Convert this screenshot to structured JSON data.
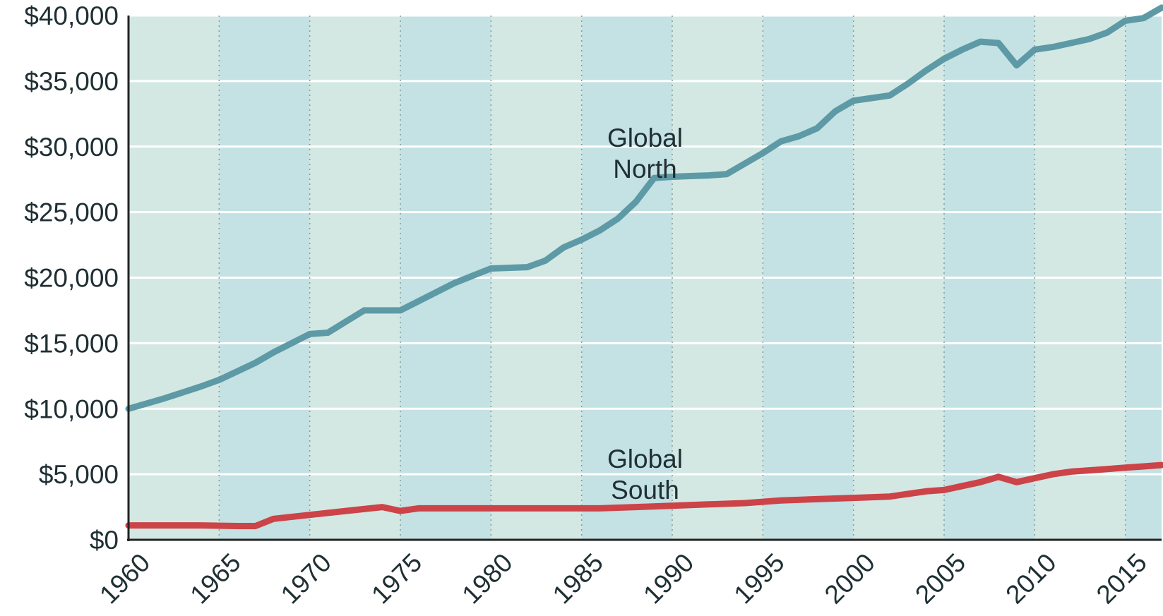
{
  "chart_data": {
    "type": "line",
    "title": "",
    "xlabel": "",
    "ylabel": "",
    "xlim": [
      1960,
      2017
    ],
    "ylim": [
      0,
      40000
    ],
    "y_ticks": [
      0,
      5000,
      10000,
      15000,
      20000,
      25000,
      30000,
      35000,
      40000
    ],
    "y_tick_labels": [
      "$0",
      "$5,000",
      "$10,000",
      "$15,000",
      "$20,000",
      "$25,000",
      "$30,000",
      "$35,000",
      "$40,000"
    ],
    "x_ticks": [
      1960,
      1965,
      1970,
      1975,
      1980,
      1985,
      1990,
      1995,
      2000,
      2005,
      2010,
      2015
    ],
    "x_tick_labels": [
      "1960",
      "1965",
      "1970",
      "1975",
      "1980",
      "1985",
      "1990",
      "1995",
      "2000",
      "2005",
      "2010",
      "2015"
    ],
    "grid": true,
    "legend": "none",
    "colors": {
      "band_light": "#d4e8e3",
      "band_dark": "#c4e1e3",
      "grid_h": "#ffffff",
      "grid_v": "#7f9e9a",
      "axis": "#222222"
    },
    "series": [
      {
        "name": "Global North",
        "label_lines": [
          "Global",
          "North"
        ],
        "label_anchor": [
          1988.5,
          30000
        ],
        "color": "#5d9aa6",
        "x": [
          1960,
          1962,
          1964,
          1965,
          1967,
          1968,
          1970,
          1971,
          1973,
          1975,
          1976,
          1977,
          1978,
          1980,
          1982,
          1983,
          1984,
          1985,
          1986,
          1987,
          1988,
          1989,
          1990,
          1991,
          1992,
          1993,
          1994,
          1995,
          1996,
          1997,
          1998,
          1999,
          2000,
          2001,
          2002,
          2003,
          2004,
          2005,
          2006,
          2007,
          2008,
          2009,
          2010,
          2011,
          2012,
          2013,
          2014,
          2015,
          2016,
          2017
        ],
        "y": [
          10000,
          10800,
          11700,
          12200,
          13500,
          14300,
          15700,
          15800,
          17500,
          17500,
          18200,
          18900,
          19600,
          20700,
          20800,
          21300,
          22300,
          22900,
          23600,
          24500,
          25800,
          27600,
          27700,
          27750,
          27800,
          27900,
          28700,
          29500,
          30400,
          30800,
          31400,
          32700,
          33500,
          33700,
          33900,
          34800,
          35800,
          36700,
          37400,
          38000,
          37900,
          36200,
          37400,
          37600,
          37900,
          38200,
          38700,
          39600,
          39800,
          40600
        ]
      },
      {
        "name": "Global South",
        "label_lines": [
          "Global",
          "South"
        ],
        "label_anchor": [
          1988.5,
          5500
        ],
        "color": "#cc4348",
        "x": [
          1960,
          1962,
          1964,
          1966,
          1967,
          1968,
          1970,
          1972,
          1974,
          1975,
          1976,
          1978,
          1980,
          1982,
          1984,
          1986,
          1988,
          1990,
          1992,
          1994,
          1996,
          1998,
          2000,
          2002,
          2003,
          2004,
          2005,
          2006,
          2007,
          2008,
          2009,
          2010,
          2011,
          2012,
          2013,
          2014,
          2015,
          2016,
          2017
        ],
        "y": [
          1100,
          1100,
          1100,
          1050,
          1050,
          1600,
          1900,
          2200,
          2500,
          2200,
          2400,
          2400,
          2400,
          2400,
          2400,
          2400,
          2500,
          2600,
          2700,
          2800,
          3000,
          3100,
          3200,
          3300,
          3500,
          3700,
          3800,
          4100,
          4400,
          4800,
          4400,
          4700,
          5000,
          5200,
          5300,
          5400,
          5500,
          5600,
          5700
        ]
      }
    ]
  }
}
